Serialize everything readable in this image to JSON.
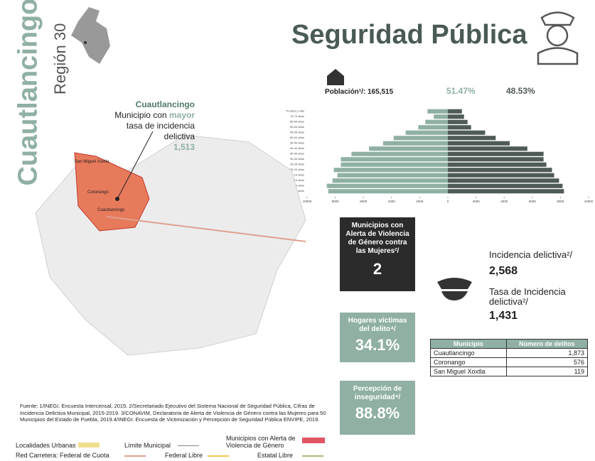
{
  "header": {
    "municipality": "Cuautlancingo",
    "region": "Región 30",
    "title": "Seguridad Pública"
  },
  "population": {
    "label": "Población¹/: 165,515"
  },
  "chart_data": {
    "type": "pyramid",
    "categories": [
      "75 años y más",
      "70-74 años",
      "65-69 años",
      "60-64 años",
      "55-59 años",
      "50-54 años",
      "45-49 años",
      "40-44 años",
      "35-39 años",
      "30-34 años",
      "25-29 años",
      "20-24 años",
      "15-19 años",
      "10-14 años",
      "05-09 años",
      "00-04 años"
    ],
    "series": [
      {
        "name": "51.47%",
        "color": "#8fb0a2",
        "side": "left",
        "values": [
          1450,
          1000,
          1600,
          2100,
          3000,
          3850,
          4600,
          5600,
          6850,
          7600,
          7600,
          8100,
          7850,
          8200,
          8600,
          8500
        ]
      },
      {
        "name": "48.53%",
        "color": "#4f5b57",
        "side": "right",
        "values": [
          1000,
          1150,
          1400,
          1650,
          2650,
          3400,
          4400,
          5650,
          6800,
          6800,
          7000,
          7400,
          7550,
          7900,
          8150,
          8250
        ]
      }
    ],
    "xlim": [
      -10000,
      10000
    ],
    "xticks": [
      {
        "value": -10000,
        "label": "10000"
      },
      {
        "value": -8000,
        "label": "8000"
      },
      {
        "value": -6000,
        "label": "6000"
      },
      {
        "value": -4000,
        "label": "4000"
      },
      {
        "value": -2000,
        "label": "2000"
      },
      0,
      2000,
      4000,
      6000,
      8000,
      10000
    ]
  },
  "callout": {
    "name": "Cuautlancingo",
    "line1": "Municipio con",
    "highlight": "mayor",
    "line2": "tasa de incidencia",
    "line3": "delictiva",
    "value": "1,513"
  },
  "map_labels": [
    "San Miguel Xoxtla",
    "Coronango",
    "Cuautlancingo"
  ],
  "boxes": [
    {
      "label": "Municipios con Alerta de Violencia de Género contra las Mujeres²/",
      "value": "2"
    },
    {
      "label": "Hogares víctimas del delito⁴/",
      "value": "34.1%"
    },
    {
      "label": "Percepción de inseguridad⁴/",
      "value": "88.8%"
    }
  ],
  "incidence": {
    "label": "Incidencia delictiva²/",
    "value": "2,568",
    "rate_label": "Tasa de Incidencia delictiva²/",
    "rate_value": "1,431"
  },
  "table": {
    "header": [
      "Municipio",
      "Número de delitos"
    ],
    "rows": [
      [
        "Cuautlancingo",
        "1,873"
      ],
      [
        "Coronango",
        "576"
      ],
      [
        "San Miguel Xoxtla",
        "119"
      ]
    ]
  },
  "source": "Fuente: 1/INEGI. Encuesta Intercensal, 2015. 2/Secretariado Ejecutivo del Sistema Nacional de Seguridad Pública, Cifras de Incidencia Delictiva Municipal, 2015-2019. 3/CONAVIM, Declaratoria de Alerta de Violencia de Género contra las Mujeres para 50 Municipios del Estado de Puebla, 2019.4/INEGI. Encuesta de Victimización y Percepción de Seguridad Pública ENVIPE, 2019.",
  "legend": [
    "Localidades Urbanas",
    "Límite Municipal",
    "Municipios con Alerta de Violencia de Género",
    "Red Carretera: Federal de Cuota",
    "Federal Libre",
    "Estatal Libre"
  ]
}
